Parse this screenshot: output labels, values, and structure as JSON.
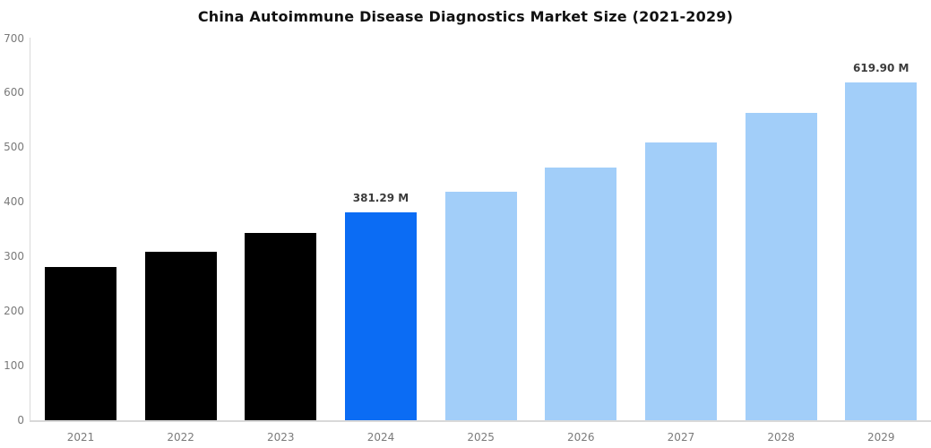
{
  "title": "China Autoimmune Disease Diagnostics Market Size (2021-2029)",
  "colors": {
    "historical_bar": "#000000",
    "highlight_bar": "#0b6cf4",
    "forecast_bar": "#a2cef9",
    "axis_line": "#d9d9d9",
    "tick_label": "#7a7a7a",
    "value_label": "#3b3b3b",
    "title_text": "#111111",
    "background": "#ffffff"
  },
  "chart_data": {
    "type": "bar",
    "title": "China Autoimmune Disease Diagnostics Market Size (2021-2029)",
    "unit": "M",
    "categories": [
      "2021",
      "2022",
      "2023",
      "2024",
      "2025",
      "2026",
      "2027",
      "2028",
      "2029"
    ],
    "values": [
      281,
      310,
      344,
      381.29,
      420,
      463,
      510,
      563,
      619.9
    ],
    "bar_colors": [
      "#000000",
      "#000000",
      "#000000",
      "#0b6cf4",
      "#a2cef9",
      "#a2cef9",
      "#a2cef9",
      "#a2cef9",
      "#a2cef9"
    ],
    "data_labels": [
      null,
      null,
      null,
      "381.29 M",
      null,
      null,
      null,
      null,
      "619.90 M"
    ],
    "xlabel": "",
    "ylabel": "",
    "ylim": [
      0,
      700
    ],
    "yticks": [
      "0",
      "100",
      "200",
      "300",
      "400",
      "500",
      "600",
      "700"
    ],
    "grid": false,
    "legend": null
  }
}
